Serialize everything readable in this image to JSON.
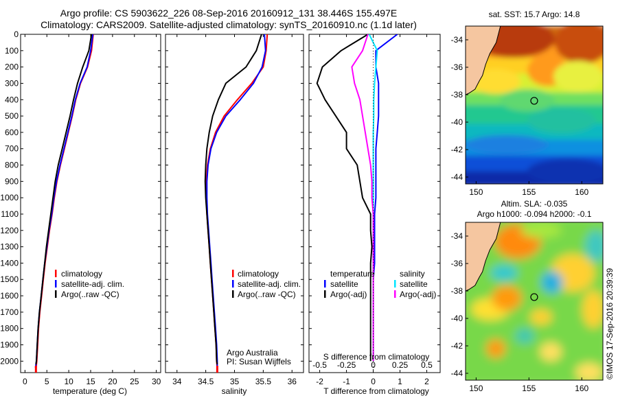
{
  "header": {
    "title_line1": "Argo profile: CS 5903622_226 08-Sep-2016 20160912_131 38.446S 155.497E",
    "title_line2": "Climatology: CARS2009. Satellite-adjusted climatology: synTS_20160910.nc (1.1d later)"
  },
  "colors": {
    "climatology": "#ff0000",
    "satellite": "#0000ff",
    "argo": "#000000",
    "salinity_satellite": "#00e5ff",
    "salinity_argo": "#ff00ff",
    "land": "#f5c6a0"
  },
  "chart_data": [
    {
      "type": "line",
      "name": "temperature-profile",
      "xlabel": "temperature (deg C)",
      "ylabel": "",
      "xlim": [
        -1,
        31
      ],
      "ylim": [
        2070,
        0
      ],
      "xticks": [
        0,
        5,
        10,
        15,
        20,
        25,
        30
      ],
      "yticks": [
        0,
        100,
        200,
        300,
        400,
        500,
        600,
        700,
        800,
        900,
        1000,
        1100,
        1200,
        1300,
        1400,
        1500,
        1600,
        1700,
        1800,
        1900,
        2000
      ],
      "legend": [
        "climatology",
        "satellite-adj. clim.",
        "Argo(..raw -QC)"
      ],
      "series": [
        {
          "name": "climatology",
          "color": "#ff0000",
          "x": [
            15.6,
            15.2,
            14.3,
            12.7,
            11.6,
            10.8,
            9.9,
            9.0,
            8.1,
            7.3,
            6.7,
            6.2,
            5.6,
            5.1,
            4.6,
            4.2,
            3.8,
            3.4,
            3.1,
            2.9,
            2.7,
            2.5
          ],
          "y": [
            0,
            100,
            200,
            300,
            400,
            500,
            600,
            700,
            800,
            900,
            1000,
            1100,
            1200,
            1300,
            1400,
            1500,
            1600,
            1700,
            1800,
            1900,
            2000,
            2050
          ]
        },
        {
          "name": "satellite-adj. clim.",
          "color": "#0000ff",
          "x": [
            15.5,
            15.0,
            14.2,
            12.6,
            11.5,
            10.7,
            9.8,
            8.9,
            8.0,
            7.2,
            6.6,
            6.1,
            5.5,
            5.0,
            4.5,
            4.1,
            3.7,
            3.3,
            3.0,
            2.8,
            2.6,
            2.4
          ],
          "y": [
            0,
            100,
            200,
            300,
            400,
            500,
            600,
            700,
            800,
            900,
            1000,
            1100,
            1200,
            1300,
            1400,
            1500,
            1600,
            1700,
            1800,
            1900,
            2000,
            2040
          ]
        },
        {
          "name": "Argo(..raw -QC)",
          "color": "#000000",
          "x": [
            15.2,
            14.6,
            13.2,
            12.0,
            11.1,
            10.3,
            9.4,
            8.5,
            7.6,
            6.9,
            6.4,
            5.9,
            5.4,
            4.9,
            4.5,
            4.1,
            3.7,
            3.3,
            3.0,
            2.8,
            2.6,
            2.5
          ],
          "y": [
            0,
            100,
            200,
            300,
            400,
            500,
            600,
            700,
            800,
            900,
            1000,
            1100,
            1200,
            1300,
            1400,
            1500,
            1600,
            1700,
            1800,
            1900,
            2000,
            2020
          ]
        }
      ]
    },
    {
      "type": "line",
      "name": "salinity-profile",
      "xlabel": "salinity",
      "ylabel": "",
      "xlim": [
        33.8,
        36.2
      ],
      "ylim": [
        2070,
        0
      ],
      "xticks": [
        34,
        34.5,
        35,
        35.5,
        36
      ],
      "legend": [
        "climatology",
        "satellite-adj. clim.",
        "Argo(..raw -QC)"
      ],
      "annotation_line1": "Argo Australia",
      "annotation_line2": "PI: Susan Wijffels",
      "series": [
        {
          "name": "climatology",
          "color": "#ff0000",
          "x": [
            35.57,
            35.55,
            35.5,
            35.3,
            35.05,
            34.82,
            34.67,
            34.58,
            34.53,
            34.51,
            34.51,
            34.52,
            34.54,
            34.56,
            34.58,
            34.6,
            34.62,
            34.64,
            34.66,
            34.68,
            34.69,
            34.7
          ],
          "y": [
            0,
            100,
            200,
            300,
            400,
            500,
            600,
            700,
            800,
            900,
            1000,
            1100,
            1200,
            1300,
            1400,
            1500,
            1600,
            1700,
            1800,
            1900,
            2000,
            2050
          ]
        },
        {
          "name": "satellite-adj. clim.",
          "color": "#0000ff",
          "x": [
            35.52,
            35.54,
            35.48,
            35.33,
            35.1,
            34.85,
            34.69,
            34.59,
            34.54,
            34.52,
            34.52,
            34.53,
            34.55,
            34.57,
            34.59,
            34.61,
            34.63,
            34.65,
            34.67,
            34.69,
            34.7,
            34.7
          ],
          "y": [
            0,
            100,
            200,
            300,
            400,
            500,
            600,
            700,
            800,
            900,
            1000,
            1100,
            1200,
            1300,
            1400,
            1500,
            1600,
            1700,
            1800,
            1900,
            2000,
            2040
          ]
        },
        {
          "name": "Argo(..raw -QC)",
          "color": "#000000",
          "x": [
            35.47,
            35.38,
            35.2,
            34.85,
            34.72,
            34.62,
            34.56,
            34.52,
            34.5,
            34.49,
            34.5,
            34.52,
            34.54,
            34.56,
            34.58,
            34.6,
            34.62,
            34.64,
            34.66,
            34.68,
            34.69,
            34.7
          ],
          "y": [
            0,
            100,
            200,
            300,
            400,
            500,
            600,
            700,
            800,
            900,
            1000,
            1100,
            1200,
            1300,
            1400,
            1500,
            1600,
            1700,
            1800,
            1900,
            2000,
            2020
          ]
        }
      ]
    },
    {
      "type": "line",
      "name": "difference-profile",
      "xlabel": "T difference from climatology",
      "xlabel_top": "S difference from climatology",
      "xlim": [
        -2.4,
        2.5
      ],
      "ylim": [
        2070,
        0
      ],
      "xticks": [
        -2,
        -1,
        0,
        1,
        2
      ],
      "s_xticks": [
        -0.5,
        -0.25,
        0,
        0.25,
        0.5
      ],
      "s_xtick_labels": [
        "-0.5",
        "-0.25",
        "0",
        "0.25",
        "0.5"
      ],
      "legend_headers": [
        "temperature",
        "salinity"
      ],
      "legend": [
        "satellite",
        "Argo(-adj)",
        "satellite",
        "Argo(-adj)"
      ],
      "series": [
        {
          "name": "temperature satellite",
          "color": "#0000ff",
          "x": [
            0.9,
            0.1,
            0.1,
            0.2,
            0.2,
            0.2,
            0.15,
            0.1,
            0.1,
            0.1,
            0.1,
            0.05,
            0.05,
            0.05,
            0.05,
            0.0,
            0.0,
            0.0,
            0.0,
            0.0,
            0.0
          ],
          "y": [
            0,
            100,
            200,
            300,
            400,
            500,
            600,
            700,
            800,
            900,
            1000,
            1100,
            1200,
            1300,
            1400,
            1500,
            1600,
            1700,
            1800,
            1900,
            2000
          ]
        },
        {
          "name": "temperature Argo(-adj)",
          "color": "#000000",
          "x": [
            -0.2,
            -1.2,
            -1.9,
            -2.1,
            -1.8,
            -1.4,
            -1.0,
            -1.0,
            -0.6,
            -0.5,
            -0.4,
            -0.1,
            -0.1,
            -0.05,
            -0.1,
            -0.1,
            -0.1,
            -0.1,
            -0.1,
            -0.1,
            -0.1
          ],
          "y": [
            0,
            100,
            200,
            300,
            400,
            500,
            600,
            700,
            800,
            900,
            1000,
            1100,
            1200,
            1300,
            1400,
            1500,
            1600,
            1700,
            1800,
            1900,
            2000
          ]
        },
        {
          "name": "salinity satellite",
          "color": "#00e5ff",
          "x": [
            -0.15,
            0.15,
            0.1,
            0.05,
            0.02,
            0.02,
            0.0,
            0.0,
            0.0,
            0.0,
            0.0,
            0.0,
            0.0,
            0.0,
            0.0,
            0.0,
            0.0,
            0.0,
            0.0,
            0.0,
            0.0
          ],
          "y": [
            0,
            100,
            200,
            300,
            400,
            500,
            600,
            700,
            800,
            900,
            1000,
            1100,
            1200,
            1300,
            1400,
            1500,
            1600,
            1700,
            1800,
            1900,
            2000
          ]
        },
        {
          "name": "salinity Argo(-adj)",
          "color": "#ff00ff",
          "x": [
            -0.2,
            -0.4,
            -0.8,
            -0.7,
            -0.5,
            -0.4,
            -0.3,
            -0.2,
            -0.1,
            -0.05,
            -0.05,
            0.0,
            0.0,
            0.0,
            0.0,
            0.0,
            0.0,
            0.0,
            0.0,
            0.0,
            0.0
          ],
          "y": [
            0,
            100,
            200,
            300,
            400,
            500,
            600,
            700,
            800,
            900,
            1000,
            1100,
            1200,
            1300,
            1400,
            1500,
            1600,
            1700,
            1800,
            1900,
            2000
          ]
        }
      ]
    },
    {
      "type": "heatmap",
      "name": "sst-map",
      "title": "sat. SST: 15.7 Argo: 14.8",
      "xlim": [
        149,
        162
      ],
      "ylim": [
        -44.5,
        -33
      ],
      "xticks": [
        150,
        155,
        160
      ],
      "yticks": [
        -34,
        -36,
        -38,
        -40,
        -42,
        -44
      ],
      "ytick_labels": [
        "-34",
        "-36",
        "-38",
        "-40",
        "-42",
        "-44"
      ],
      "marker": {
        "lon": 155.497,
        "lat": -38.446
      }
    },
    {
      "type": "heatmap",
      "name": "sla-map",
      "title_line1": "Altim. SLA: -0.035",
      "title_line2": "Argo h1000: -0.094 h2000: -0.1",
      "xlim": [
        149,
        162
      ],
      "ylim": [
        -44.5,
        -33
      ],
      "xticks": [
        150,
        155,
        160
      ],
      "yticks": [
        -34,
        -36,
        -38,
        -40,
        -42,
        -44
      ],
      "ytick_labels": [
        "-34",
        "-36",
        "-38",
        "-40",
        "-42",
        "-44"
      ],
      "marker": {
        "lon": 155.497,
        "lat": -38.446
      }
    }
  ],
  "credit": "©IMOS 17-Sep-2016 20:39:39"
}
